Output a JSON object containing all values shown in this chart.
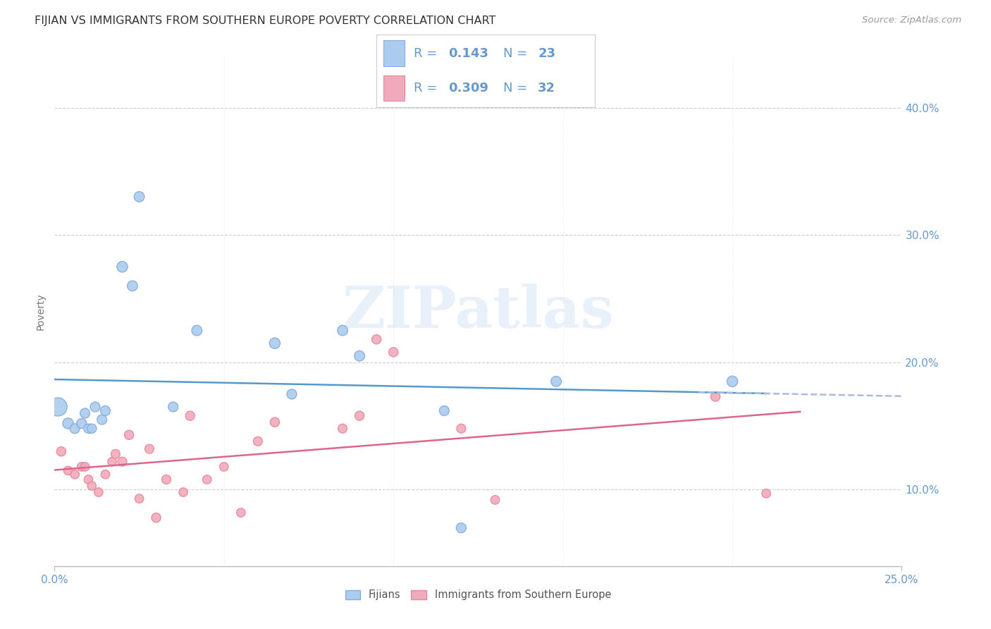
{
  "title": "FIJIAN VS IMMIGRANTS FROM SOUTHERN EUROPE POVERTY CORRELATION CHART",
  "source": "Source: ZipAtlas.com",
  "ylabel": "Poverty",
  "xlim": [
    0.0,
    0.25
  ],
  "ylim": [
    0.04,
    0.44
  ],
  "xtick_positions": [
    0.0,
    0.25
  ],
  "xticklabels": [
    "0.0%",
    "25.0%"
  ],
  "yticks": [
    0.1,
    0.2,
    0.3,
    0.4
  ],
  "yticklabels": [
    "10.0%",
    "20.0%",
    "30.0%",
    "40.0%"
  ],
  "fijian_x": [
    0.001,
    0.004,
    0.006,
    0.008,
    0.009,
    0.01,
    0.011,
    0.012,
    0.014,
    0.015,
    0.02,
    0.023,
    0.025,
    0.035,
    0.042,
    0.065,
    0.07,
    0.085,
    0.09,
    0.115,
    0.12,
    0.148,
    0.2
  ],
  "fijian_y": [
    0.165,
    0.152,
    0.148,
    0.152,
    0.16,
    0.148,
    0.148,
    0.165,
    0.155,
    0.162,
    0.275,
    0.26,
    0.33,
    0.165,
    0.225,
    0.215,
    0.175,
    0.225,
    0.205,
    0.162,
    0.07,
    0.185,
    0.185
  ],
  "fijian_sizes": [
    350,
    120,
    100,
    100,
    100,
    90,
    90,
    100,
    100,
    100,
    120,
    110,
    110,
    100,
    110,
    120,
    100,
    110,
    110,
    100,
    100,
    110,
    120
  ],
  "immigrants_x": [
    0.002,
    0.004,
    0.006,
    0.008,
    0.009,
    0.01,
    0.011,
    0.013,
    0.015,
    0.017,
    0.018,
    0.02,
    0.022,
    0.025,
    0.028,
    0.03,
    0.033,
    0.038,
    0.04,
    0.045,
    0.05,
    0.055,
    0.06,
    0.065,
    0.085,
    0.09,
    0.095,
    0.1,
    0.12,
    0.13,
    0.195,
    0.21
  ],
  "immigrants_y": [
    0.13,
    0.115,
    0.112,
    0.118,
    0.118,
    0.108,
    0.103,
    0.098,
    0.112,
    0.122,
    0.128,
    0.122,
    0.143,
    0.093,
    0.132,
    0.078,
    0.108,
    0.098,
    0.158,
    0.108,
    0.118,
    0.082,
    0.138,
    0.153,
    0.148,
    0.158,
    0.218,
    0.208,
    0.148,
    0.092,
    0.173,
    0.097
  ],
  "immigrants_sizes": [
    90,
    80,
    80,
    80,
    80,
    80,
    80,
    80,
    80,
    80,
    85,
    85,
    90,
    80,
    85,
    90,
    85,
    80,
    90,
    80,
    80,
    80,
    85,
    90,
    85,
    90,
    90,
    90,
    85,
    80,
    90,
    80
  ],
  "fijian_color": "#aaccee",
  "fijian_edge_color": "#88aadd",
  "immigrants_color": "#f0aabc",
  "immigrants_edge_color": "#e88899",
  "trend_blue_color": "#5599cc",
  "trend_pink_color": "#dd6688",
  "trend_dash_color": "#aabbdd",
  "R_fijian": 0.143,
  "N_fijian": 23,
  "R_immigrants": 0.309,
  "N_immigrants": 32,
  "watermark": "ZIPatlas",
  "background_color": "#ffffff",
  "grid_color": "#cccccc",
  "axis_label_color": "#6699cc",
  "title_color": "#333333",
  "legend_text_color": "#6699cc",
  "title_fontsize": 11.5,
  "axis_fontsize": 10,
  "tick_fontsize": 11,
  "source_fontsize": 9.5,
  "legend_fontsize": 13
}
